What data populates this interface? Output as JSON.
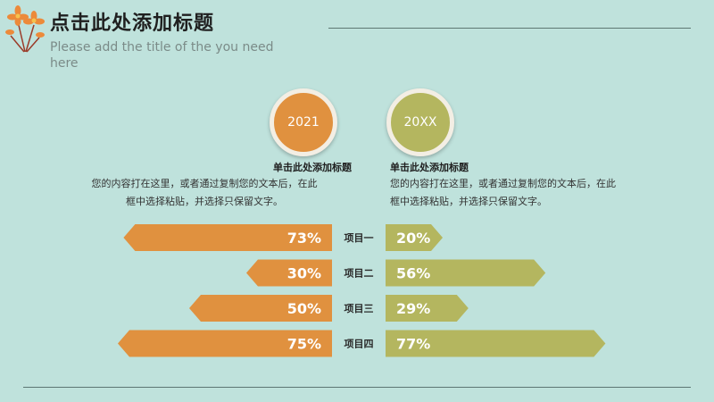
{
  "header": {
    "title": "点击此处添加标题",
    "subtitle": "Please add the title of the you need here"
  },
  "circles": {
    "left": "2021",
    "right": "20XX"
  },
  "blocks": {
    "left": {
      "title": "单击此处添加标题",
      "body_line1": "您的内容打在这里，或者通过复制您的文本后，在此",
      "body_line2": "框中选择粘贴，并选择只保留文字。"
    },
    "right": {
      "title": "单击此处添加标题",
      "body_line1": "您的内容打在这里，或者通过复制您的文本后，在此",
      "body_line2": "框中选择粘贴，并选择只保留文字。"
    }
  },
  "colors": {
    "background": "#bfe2dc",
    "left_series": "#e0913f",
    "right_series": "#b4b65f"
  },
  "icons": {
    "decoration": "flower-icon"
  },
  "chart_data": {
    "type": "bar",
    "categories": [
      "项目一",
      "项目二",
      "项目三",
      "项目四"
    ],
    "series": [
      {
        "name": "2021",
        "values": [
          73,
          30,
          50,
          75
        ],
        "labels": [
          "73%",
          "30%",
          "50%",
          "75%"
        ]
      },
      {
        "name": "20XX",
        "values": [
          20,
          56,
          29,
          77
        ],
        "labels": [
          "20%",
          "56%",
          "29%",
          "77%"
        ]
      }
    ],
    "ylim": [
      0,
      100
    ],
    "unit": "%"
  }
}
